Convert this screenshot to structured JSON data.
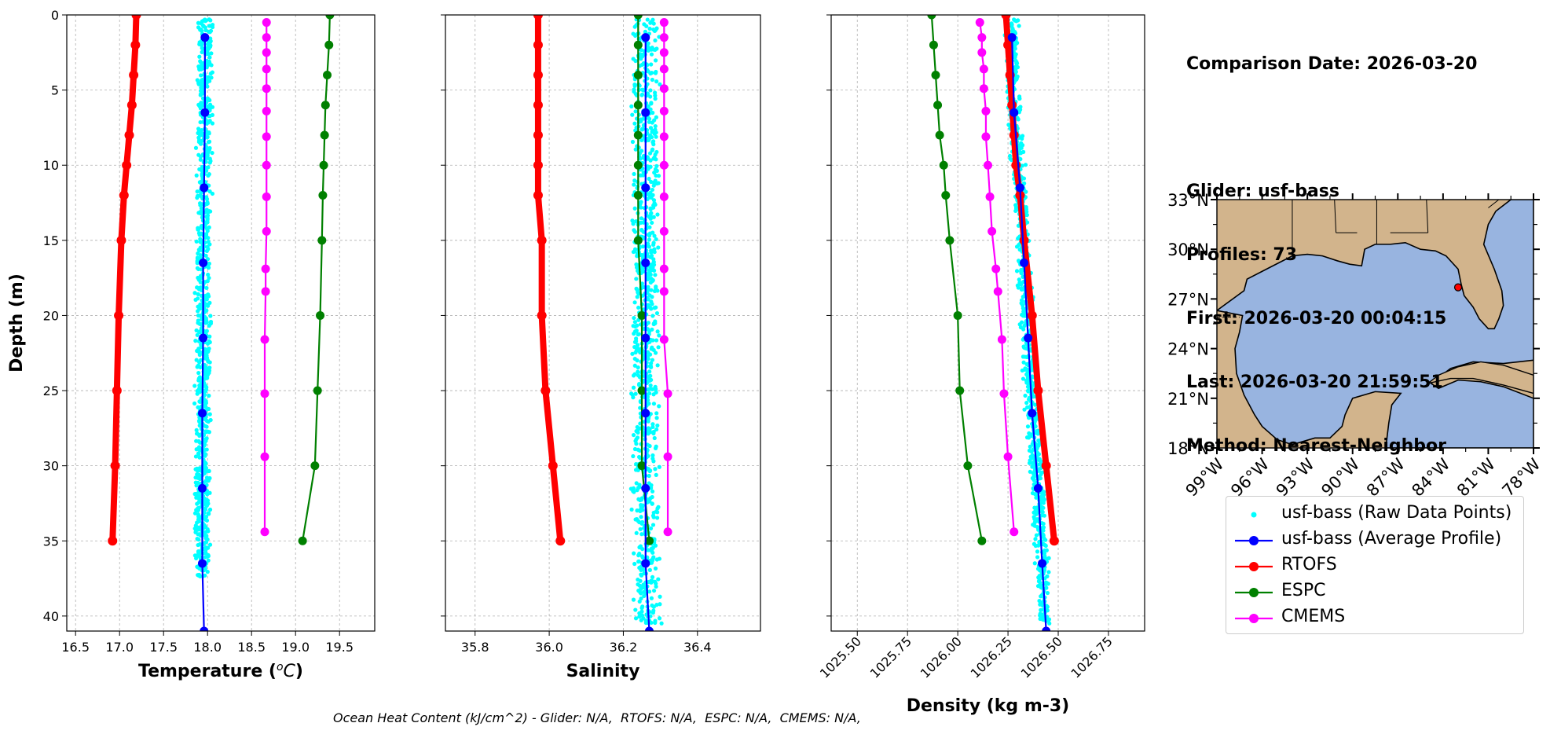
{
  "info": {
    "comparison_date": "Comparison Date: 2026-03-20",
    "glider": "Glider: usf-bass",
    "profiles": "Profiles: 73",
    "first": "First: 2026-03-20 00:04:15",
    "last": "Last: 2026-03-20 21:59:51",
    "method": "Method: Nearest-Neighbor"
  },
  "footer": "Ocean Heat Content (kJ/cm^2) - Glider: N/A,  RTOFS: N/A,  ESPC: N/A,  CMEMS: N/A,",
  "colors": {
    "raw": "#00ffff",
    "glider": "#0000ff",
    "rtofs": "#ff0000",
    "espc": "#008000",
    "cmems": "#ff00ff",
    "land": "#d2b48c",
    "ocean": "#98b4e0"
  },
  "legend": [
    {
      "label": "usf-bass (Raw Data Points)",
      "color": "#00ffff",
      "style": "dot"
    },
    {
      "label": "usf-bass (Average Profile)",
      "color": "#0000ff",
      "style": "line"
    },
    {
      "label": "RTOFS",
      "color": "#ff0000",
      "style": "line"
    },
    {
      "label": "ESPC",
      "color": "#008000",
      "style": "line"
    },
    {
      "label": "CMEMS",
      "color": "#ff00ff",
      "style": "line"
    }
  ],
  "chart_data": [
    {
      "type": "line",
      "xlabel": "Temperature (°C)",
      "ylabel": "Depth (m)",
      "xlim": [
        16.4,
        19.9
      ],
      "ylim": [
        41,
        0
      ],
      "xticks": [
        "16.5",
        "17.0",
        "17.5",
        "18.0",
        "18.5",
        "19.0",
        "19.5"
      ],
      "yticks": [
        "0",
        "5",
        "10",
        "15",
        "20",
        "25",
        "30",
        "35",
        "40"
      ],
      "grid": true,
      "raw_range": {
        "center": 17.95,
        "spread": 0.1,
        "depth_max": 37.5
      },
      "series": [
        {
          "name": "usf-bass (Average Profile)",
          "color": "#0000ff",
          "depth": [
            1.5,
            6.5,
            11.5,
            16.5,
            21.5,
            26.5,
            31.5,
            36.5,
            41
          ],
          "values": [
            17.97,
            17.97,
            17.96,
            17.95,
            17.95,
            17.94,
            17.94,
            17.94,
            17.96
          ]
        },
        {
          "name": "RTOFS",
          "color": "#ff0000",
          "depth": [
            0,
            2,
            4,
            6,
            8,
            10,
            12,
            15,
            20,
            25,
            30,
            35
          ],
          "values": [
            17.19,
            17.18,
            17.16,
            17.14,
            17.11,
            17.08,
            17.05,
            17.02,
            16.99,
            16.97,
            16.95,
            16.92
          ]
        },
        {
          "name": "ESPC",
          "color": "#008000",
          "depth": [
            0,
            2,
            4,
            6,
            8,
            10,
            12,
            15,
            20,
            25,
            30,
            35
          ],
          "values": [
            19.39,
            19.38,
            19.36,
            19.34,
            19.33,
            19.32,
            19.31,
            19.3,
            19.28,
            19.25,
            19.22,
            19.08
          ]
        },
        {
          "name": "CMEMS",
          "color": "#ff00ff",
          "depth": [
            0.5,
            1.5,
            2.5,
            3.6,
            4.9,
            6.4,
            8.1,
            10.0,
            12.1,
            14.4,
            16.9,
            18.4,
            21.6,
            25.2,
            29.4,
            34.4
          ],
          "values": [
            18.67,
            18.67,
            18.67,
            18.67,
            18.67,
            18.67,
            18.67,
            18.67,
            18.67,
            18.67,
            18.66,
            18.66,
            18.65,
            18.65,
            18.65,
            18.65
          ]
        }
      ]
    },
    {
      "type": "line",
      "xlabel": "Salinity",
      "ylim": [
        41,
        0
      ],
      "xlim": [
        35.72,
        36.57
      ],
      "xticks": [
        "35.8",
        "36.0",
        "36.2",
        "36.4"
      ],
      "grid": true,
      "raw_range": {
        "center": 36.26,
        "spread": 0.04,
        "depth_max": 40.5
      },
      "series": [
        {
          "name": "usf-bass (Average Profile)",
          "color": "#0000ff",
          "depth": [
            1.5,
            6.5,
            11.5,
            16.5,
            21.5,
            26.5,
            31.5,
            36.5,
            41
          ],
          "values": [
            36.26,
            36.26,
            36.26,
            36.26,
            36.26,
            36.26,
            36.26,
            36.26,
            36.27
          ]
        },
        {
          "name": "RTOFS",
          "color": "#ff0000",
          "depth": [
            0,
            2,
            4,
            6,
            8,
            10,
            12,
            15,
            20,
            25,
            30,
            35
          ],
          "values": [
            35.97,
            35.97,
            35.97,
            35.97,
            35.97,
            35.97,
            35.97,
            35.98,
            35.98,
            35.99,
            36.01,
            36.03
          ]
        },
        {
          "name": "ESPC",
          "color": "#008000",
          "depth": [
            0,
            2,
            4,
            6,
            8,
            10,
            12,
            15,
            20,
            25,
            30,
            35
          ],
          "values": [
            36.24,
            36.24,
            36.24,
            36.24,
            36.24,
            36.24,
            36.24,
            36.24,
            36.25,
            36.25,
            36.25,
            36.27
          ]
        },
        {
          "name": "CMEMS",
          "color": "#ff00ff",
          "depth": [
            0.5,
            1.5,
            2.5,
            3.6,
            4.9,
            6.4,
            8.1,
            10.0,
            12.1,
            14.4,
            16.9,
            18.4,
            21.6,
            25.2,
            29.4,
            34.4
          ],
          "values": [
            36.31,
            36.31,
            36.31,
            36.31,
            36.31,
            36.31,
            36.31,
            36.31,
            36.31,
            36.31,
            36.31,
            36.31,
            36.31,
            36.32,
            36.32,
            36.32
          ]
        }
      ]
    },
    {
      "type": "line",
      "xlabel": "Density (kg m-3)",
      "ylim": [
        41,
        0
      ],
      "xlim": [
        1025.37,
        1026.93
      ],
      "xticks": [
        "1025.50",
        "1025.75",
        "1026.00",
        "1026.25",
        "1026.50",
        "1026.75"
      ],
      "grid": true,
      "raw_range": {
        "center": 1026.31,
        "spread": 0.04,
        "depth_max": 40.5
      },
      "series": [
        {
          "name": "usf-bass (Average Profile)",
          "color": "#0000ff",
          "depth": [
            1.5,
            6.5,
            11.5,
            16.5,
            21.5,
            26.5,
            31.5,
            36.5,
            41
          ],
          "values": [
            1026.27,
            1026.28,
            1026.31,
            1026.33,
            1026.35,
            1026.37,
            1026.4,
            1026.42,
            1026.44
          ]
        },
        {
          "name": "RTOFS",
          "color": "#ff0000",
          "depth": [
            0,
            2,
            4,
            6,
            8,
            10,
            12,
            15,
            20,
            25,
            30,
            35
          ],
          "values": [
            1026.24,
            1026.25,
            1026.26,
            1026.27,
            1026.28,
            1026.29,
            1026.31,
            1026.33,
            1026.37,
            1026.4,
            1026.44,
            1026.48
          ]
        },
        {
          "name": "ESPC",
          "color": "#008000",
          "depth": [
            0,
            2,
            4,
            6,
            8,
            10,
            12,
            15,
            20,
            25,
            30,
            35
          ],
          "values": [
            1025.87,
            1025.88,
            1025.89,
            1025.9,
            1025.91,
            1025.93,
            1025.94,
            1025.96,
            1026.0,
            1026.01,
            1026.05,
            1026.12
          ]
        },
        {
          "name": "CMEMS",
          "color": "#ff00ff",
          "depth": [
            0.5,
            1.5,
            2.5,
            3.6,
            4.9,
            6.4,
            8.1,
            10.0,
            12.1,
            14.4,
            16.9,
            18.4,
            21.6,
            25.2,
            29.4,
            34.4
          ],
          "values": [
            1026.11,
            1026.12,
            1026.12,
            1026.13,
            1026.13,
            1026.14,
            1026.14,
            1026.15,
            1026.16,
            1026.17,
            1026.19,
            1026.2,
            1026.22,
            1026.23,
            1026.25,
            1026.28
          ]
        }
      ]
    }
  ],
  "map": {
    "lat_ticks": [
      "33°N",
      "30°N",
      "27°N",
      "24°N",
      "21°N",
      "18°N"
    ],
    "lon_ticks": [
      "99°W",
      "96°W",
      "93°W",
      "90°W",
      "87°W",
      "84°W",
      "81°W",
      "78°W"
    ],
    "extent": {
      "lon": [
        -99,
        -78
      ],
      "lat": [
        18,
        33
      ]
    },
    "glider_location": {
      "lon": -83.0,
      "lat": 27.7
    }
  }
}
